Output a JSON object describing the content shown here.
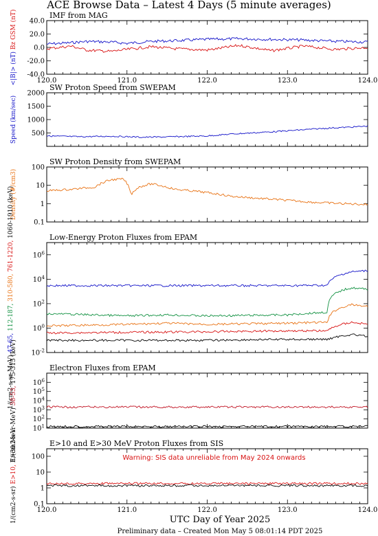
{
  "page": {
    "title": "ACE Browse Data  –  Latest 4 Days (5 minute averages)",
    "xlabel": "UTC Day of Year 2025",
    "footer": "Preliminary data  –  Created Mon May  5 08:01:14 PDT 2025"
  },
  "colors": {
    "blue": "#1010c8",
    "red": "#d81010",
    "orange": "#e87010",
    "green": "#109040",
    "black": "#000000",
    "crimson": "#c01020"
  },
  "chart_data": [
    {
      "type": "line",
      "title": "IMF from MAG",
      "xlim": [
        120.0,
        124.0
      ],
      "x_ticks": [
        "120.0",
        "121.0",
        "122.0",
        "123.0",
        "124.0"
      ],
      "ylim": [
        -40,
        40
      ],
      "y_scale": "linear",
      "y_ticks": [
        "40.0",
        "20.0",
        "0.0",
        "-20.0",
        "-40.0"
      ],
      "ylabel_parts": [
        {
          "text": "<|B|> (nT)",
          "color": "#1010c8"
        },
        {
          "text": "Bz GSM (nT)",
          "color": "#d81010"
        }
      ],
      "series": [
        {
          "name": "<|B|>",
          "color": "#1010c8",
          "x": [
            120.0,
            120.3,
            120.5,
            120.8,
            121.0,
            121.3,
            121.6,
            122.0,
            122.4,
            122.8,
            123.2,
            123.6,
            124.0
          ],
          "y": [
            5,
            7,
            9,
            8,
            6,
            9,
            10,
            12,
            13,
            12,
            11,
            9,
            8
          ]
        },
        {
          "name": "Bz GSM",
          "color": "#d81010",
          "x": [
            120.0,
            120.3,
            120.5,
            120.8,
            121.0,
            121.3,
            121.6,
            122.0,
            122.4,
            122.8,
            123.2,
            123.6,
            124.0
          ],
          "y": [
            -2,
            2,
            -4,
            -6,
            -3,
            1,
            -2,
            -4,
            3,
            -5,
            2,
            -3,
            0
          ]
        }
      ]
    },
    {
      "type": "line",
      "title": "SW Proton Speed from SWEPAM",
      "xlim": [
        120.0,
        124.0
      ],
      "ylim": [
        0,
        2000
      ],
      "y_scale": "linear",
      "y_ticks": [
        "2000",
        "1500",
        "1000",
        "500"
      ],
      "ylabel_parts": [
        {
          "text": "Speed (km/sec)",
          "color": "#1010c8"
        }
      ],
      "series": [
        {
          "name": "Speed",
          "color": "#1010c8",
          "x": [
            120.0,
            120.4,
            120.8,
            121.2,
            121.6,
            122.0,
            122.3,
            122.6,
            122.9,
            123.2,
            123.5,
            123.8,
            124.0
          ],
          "y": [
            390,
            360,
            380,
            340,
            360,
            390,
            460,
            510,
            560,
            620,
            680,
            720,
            760
          ]
        }
      ]
    },
    {
      "type": "line",
      "title": "SW Proton Density from SWEPAM",
      "xlim": [
        120.0,
        124.0
      ],
      "ylim": [
        0.1,
        100
      ],
      "y_scale": "log",
      "y_ticks": [
        "100",
        "10",
        "1",
        "0.1"
      ],
      "ylabel_parts": [
        {
          "text": "Density (#/cm3)",
          "color": "#e87010"
        }
      ],
      "series": [
        {
          "name": "Density",
          "color": "#e87010",
          "x": [
            120.0,
            120.3,
            120.6,
            120.8,
            120.95,
            121.05,
            121.15,
            121.3,
            121.6,
            122.0,
            122.3,
            122.6,
            123.0,
            123.3,
            123.7,
            124.0
          ],
          "y": [
            5,
            6,
            8,
            20,
            22,
            3,
            8,
            12,
            6,
            4,
            2.5,
            2,
            1.5,
            1.2,
            1.0,
            0.9
          ]
        }
      ]
    },
    {
      "type": "line",
      "title": "Low-Energy Proton Fluxes from EPAM",
      "xlim": [
        120.0,
        124.0
      ],
      "ylim": [
        0.01,
        10000000
      ],
      "y_scale": "log",
      "y_ticks": [
        "10^6",
        "10^4",
        "10^2",
        "10^0",
        "10^-2"
      ],
      "ylabel_parts": [
        {
          "text": "1/(cm2-s-sr-MeV)",
          "color": "#000000"
        },
        {
          "text": "47-65,",
          "color": "#1010c8"
        },
        {
          "text": "112-187,",
          "color": "#109040"
        },
        {
          "text": "310-580,",
          "color": "#e87010"
        },
        {
          "text": "761-1220,",
          "color": "#d81010"
        },
        {
          "text": "1060-1910 (keV)",
          "color": "#000000"
        }
      ],
      "series": [
        {
          "name": "47-65",
          "color": "#1010c8",
          "x": [
            120.0,
            121.0,
            121.5,
            122.0,
            123.0,
            123.5,
            123.8,
            124.0
          ],
          "y": [
            3000,
            3000,
            3000,
            3000,
            3000,
            3200,
            40000,
            50000
          ]
        },
        {
          "name": "112-187",
          "color": "#109040",
          "x": [
            120.0,
            121.0,
            121.5,
            122.0,
            123.0,
            123.5,
            123.8,
            124.0
          ],
          "y": [
            15,
            10,
            12,
            10,
            12,
            20,
            2000,
            1500
          ]
        },
        {
          "name": "310-580",
          "color": "#e87010",
          "x": [
            120.0,
            121.0,
            121.5,
            122.0,
            123.0,
            123.5,
            123.8,
            124.0
          ],
          "y": [
            1.5,
            2,
            2.5,
            2,
            2.5,
            3,
            80,
            60
          ]
        },
        {
          "name": "761-1220",
          "color": "#d81010",
          "x": [
            120.0,
            121.0,
            122.0,
            123.0,
            123.5,
            123.8,
            124.0
          ],
          "y": [
            0.4,
            0.45,
            0.5,
            0.6,
            0.6,
            3,
            2
          ]
        },
        {
          "name": "1060-1910",
          "color": "#000000",
          "x": [
            120.0,
            121.0,
            122.0,
            123.0,
            123.5,
            123.8,
            124.0
          ],
          "y": [
            0.1,
            0.1,
            0.1,
            0.12,
            0.12,
            0.3,
            0.2
          ]
        }
      ]
    },
    {
      "type": "line",
      "title": "Electron Fluxes from EPAM",
      "xlim": [
        120.0,
        124.0
      ],
      "ylim": [
        10,
        10000000
      ],
      "y_scale": "log",
      "y_ticks": [
        "10^6",
        "10^5",
        "10^4",
        "10^3",
        "10^2",
        "10^1"
      ],
      "ylabel_parts": [
        {
          "text": "1/(cm2-s-sr-MeV)",
          "color": "#000000"
        },
        {
          "text": "38-53,",
          "color": "#c01020"
        },
        {
          "text": "175-315 (keV)",
          "color": "#000000"
        }
      ],
      "series": [
        {
          "name": "38-53",
          "color": "#c01020",
          "x": [
            120.0,
            121.0,
            122.0,
            123.0,
            124.0
          ],
          "y": [
            2000,
            2000,
            2000,
            2000,
            2000
          ]
        },
        {
          "name": "175-315",
          "color": "#000000",
          "x": [
            120.0,
            121.0,
            122.0,
            123.0,
            124.0
          ],
          "y": [
            15,
            15,
            15,
            15,
            15
          ]
        }
      ]
    },
    {
      "type": "line",
      "title": "E>10 and E>30 MeV Proton Fluxes from SIS",
      "xlim": [
        120.0,
        124.0
      ],
      "x_ticks": [
        "120.0",
        "121.0",
        "122.0",
        "123.0",
        "124.0"
      ],
      "ylim": [
        0.1,
        300
      ],
      "y_scale": "log",
      "y_ticks": [
        "100",
        "10",
        "1",
        "0.1"
      ],
      "annotation": "Warning: SIS data unreliable from May 2024 onwards",
      "ylabel_parts": [
        {
          "text": "1/(cm2-s-sr)",
          "color": "#000000"
        },
        {
          "text": "E>10,",
          "color": "#d81010"
        },
        {
          "text": "E>30 MeV",
          "color": "#000000"
        }
      ],
      "series": [
        {
          "name": "E>10",
          "color": "#d81010",
          "x": [
            120.0,
            121.0,
            122.0,
            123.0,
            124.0
          ],
          "y": [
            1.9,
            1.9,
            1.9,
            1.9,
            1.9
          ]
        },
        {
          "name": "E>30",
          "color": "#000000",
          "x": [
            120.0,
            121.0,
            122.0,
            123.0,
            124.0
          ],
          "y": [
            1.4,
            1.4,
            1.4,
            1.4,
            1.4
          ]
        }
      ]
    }
  ]
}
